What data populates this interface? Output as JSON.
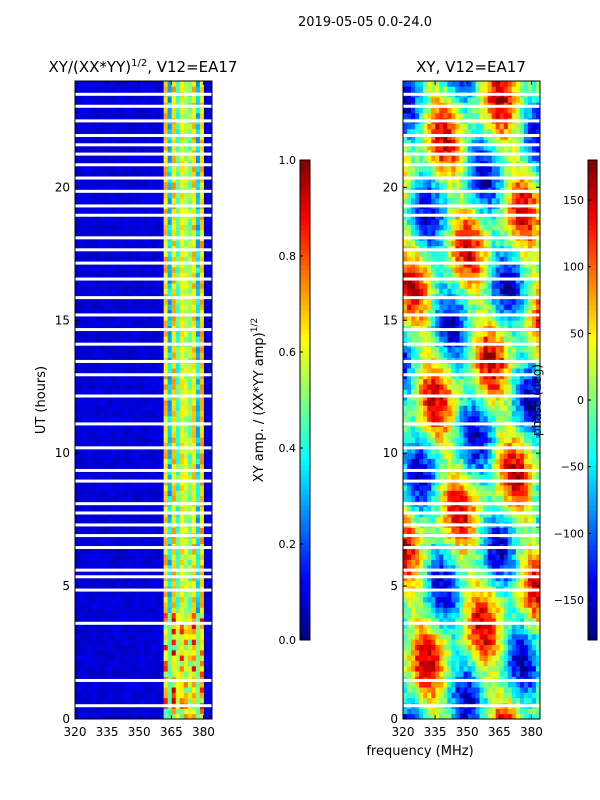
{
  "suptitle": "2019-05-05 0.0-24.0",
  "chart_data": [
    {
      "type": "heatmap",
      "title_main": "XY/(XX*YY)",
      "title_exp": "1/2",
      "title_suffix": ", V12=EA17",
      "xlabel": "",
      "ylabel": "UT (hours)",
      "xlim": [
        320,
        384
      ],
      "ylim": [
        0,
        24
      ],
      "xticks": [
        320,
        335,
        350,
        365,
        380
      ],
      "yticks": [
        0,
        5,
        10,
        15,
        20
      ],
      "colorbar": {
        "label_main": "XY amp. / (XX*YY amp)",
        "label_exp": "1/2",
        "range": [
          0.0,
          1.0
        ],
        "ticks": [
          "0.0",
          "0.2",
          "0.4",
          "0.6",
          "0.8",
          "1.0"
        ],
        "tick_values": [
          0.0,
          0.2,
          0.4,
          0.6,
          0.8,
          1.0
        ]
      }
    },
    {
      "type": "heatmap",
      "title": "XY, V12=EA17",
      "xlabel": "frequency (MHz)",
      "ylabel": "",
      "xlim": [
        320,
        384
      ],
      "ylim": [
        0,
        24
      ],
      "xticks": [
        320,
        335,
        350,
        365,
        380
      ],
      "yticks": [
        0,
        5,
        10,
        15,
        20
      ],
      "colorbar": {
        "label": "phase (deg)",
        "range": [
          -180,
          180
        ],
        "ticks": [
          "−150",
          "−100",
          "−50",
          "0",
          "50",
          "100",
          "150"
        ],
        "tick_values": [
          -150,
          -100,
          -50,
          0,
          50,
          100,
          150
        ]
      }
    }
  ],
  "gaps_ut_hours": [
    0.5,
    1.45,
    3.6,
    4.85,
    5.35,
    5.6,
    6.45,
    6.9,
    7.3,
    7.75,
    8.1,
    8.95,
    9.35,
    10.2,
    11.1,
    12.15,
    12.95,
    13.45,
    14.1,
    14.65,
    15.2,
    15.85,
    16.55,
    17.15,
    17.65,
    18.1,
    18.95,
    19.3,
    19.85,
    20.35,
    20.85,
    21.25,
    21.6,
    21.95,
    22.5,
    23.05,
    23.5
  ]
}
